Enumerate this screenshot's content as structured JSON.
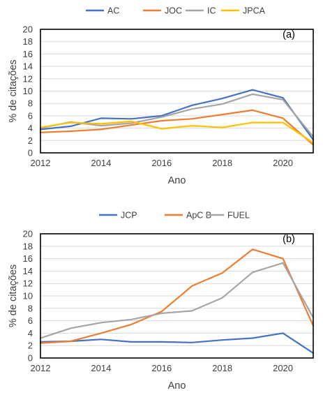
{
  "chart_data": [
    {
      "type": "line",
      "panel_label": "(a)",
      "title": "",
      "xlabel": "Ano",
      "ylabel": "% de citações",
      "x": [
        2012,
        2013,
        2014,
        2015,
        2016,
        2017,
        2018,
        2019,
        2020,
        2021
      ],
      "xlim": [
        2012,
        2021
      ],
      "ylim": [
        0,
        20
      ],
      "x_ticks": [
        2012,
        2014,
        2016,
        2018,
        2020
      ],
      "y_ticks": [
        0,
        2,
        4,
        6,
        8,
        10,
        12,
        14,
        16,
        18,
        20
      ],
      "grid": "horizontal",
      "legend_position": "top",
      "series": [
        {
          "name": "AC",
          "color": "#4472C4",
          "values": [
            3.8,
            4.3,
            5.6,
            5.5,
            6.0,
            7.7,
            8.8,
            10.2,
            8.9,
            2.1
          ]
        },
        {
          "name": "JOC",
          "color": "#ED7D31",
          "values": [
            3.3,
            3.5,
            3.8,
            4.5,
            5.2,
            5.5,
            6.2,
            6.9,
            5.6,
            1.3
          ]
        },
        {
          "name": "IC",
          "color": "#A5A5A5",
          "values": [
            4.0,
            5.0,
            4.4,
            4.8,
            5.8,
            7.1,
            7.9,
            9.5,
            8.6,
            2.6
          ]
        },
        {
          "name": "JPCA",
          "color": "#FFC000",
          "values": [
            4.1,
            4.9,
            4.7,
            5.1,
            3.9,
            4.4,
            4.1,
            4.9,
            4.9,
            1.6
          ]
        }
      ]
    },
    {
      "type": "line",
      "panel_label": "(b)",
      "title": "",
      "xlabel": "Ano",
      "ylabel": "% de citações",
      "x": [
        2012,
        2013,
        2014,
        2015,
        2016,
        2017,
        2018,
        2019,
        2020,
        2021
      ],
      "xlim": [
        2012,
        2021
      ],
      "ylim": [
        0,
        20
      ],
      "x_ticks": [
        2012,
        2014,
        2016,
        2018,
        2020
      ],
      "y_ticks": [
        0,
        2,
        4,
        6,
        8,
        10,
        12,
        14,
        16,
        18,
        20
      ],
      "grid": "horizontal",
      "legend_position": "top",
      "series": [
        {
          "name": "JCP",
          "color": "#4472C4",
          "values": [
            2.6,
            2.7,
            3.0,
            2.6,
            2.6,
            2.5,
            2.9,
            3.2,
            4.0,
            0.8
          ]
        },
        {
          "name": "ApC B",
          "color": "#ED7D31",
          "values": [
            2.4,
            2.7,
            4.0,
            5.4,
            7.5,
            11.6,
            13.7,
            17.5,
            16.0,
            5.2
          ]
        },
        {
          "name": "FUEL",
          "color": "#A5A5A5",
          "values": [
            3.2,
            4.8,
            5.7,
            6.2,
            7.2,
            7.6,
            9.7,
            13.8,
            15.3,
            6.5
          ]
        }
      ]
    }
  ]
}
